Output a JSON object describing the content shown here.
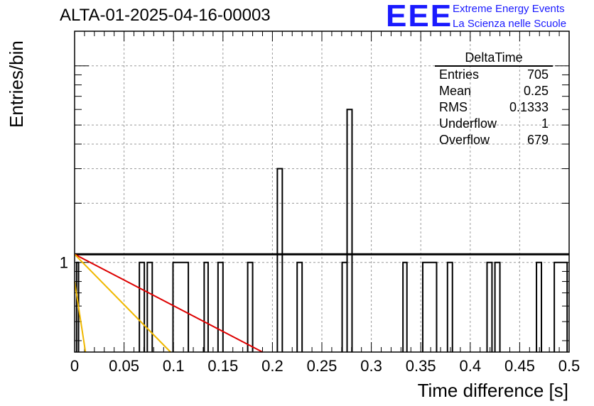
{
  "title": "ALTA-01-2025-04-16-00003",
  "logo": {
    "text": "EEE",
    "line1": "Extreme Energy Events",
    "line2": "La Scienza nelle Scuole",
    "color": "#1a1aff"
  },
  "stats": {
    "name": "DeltaTime",
    "rows": [
      {
        "label": "Entries",
        "value": "705"
      },
      {
        "label": "Mean",
        "value": "0.25"
      },
      {
        "label": "RMS",
        "value": "0.1333"
      },
      {
        "label": "Underflow",
        "value": "1"
      },
      {
        "label": "Overflow",
        "value": "679"
      }
    ]
  },
  "chart_data": {
    "type": "histogram",
    "xlabel": "Time difference [s]",
    "ylabel": "Entries/bin",
    "xlim": [
      0,
      0.5
    ],
    "log_y": true,
    "grid": true,
    "x_ticks": [
      "0",
      "0.05",
      "0.1",
      "0.15",
      "0.2",
      "0.25",
      "0.3",
      "0.35",
      "0.4",
      "0.45",
      "0.5"
    ],
    "y_ticks": [
      "1"
    ],
    "bins": [
      {
        "x0": 0.002,
        "x1": 0.004,
        "count": 1
      },
      {
        "x0": 0.0655,
        "x1": 0.0705,
        "count": 1
      },
      {
        "x0": 0.0735,
        "x1": 0.0785,
        "count": 1
      },
      {
        "x0": 0.0995,
        "x1": 0.115,
        "count": 1
      },
      {
        "x0": 0.131,
        "x1": 0.135,
        "count": 1
      },
      {
        "x0": 0.145,
        "x1": 0.15,
        "count": 1
      },
      {
        "x0": 0.175,
        "x1": 0.18,
        "count": 1
      },
      {
        "x0": 0.205,
        "x1": 0.21,
        "count": 3
      },
      {
        "x0": 0.225,
        "x1": 0.23,
        "count": 1
      },
      {
        "x0": 0.2705,
        "x1": 0.2755,
        "count": 1
      },
      {
        "x0": 0.2755,
        "x1": 0.2805,
        "count": 6
      },
      {
        "x0": 0.332,
        "x1": 0.336,
        "count": 1
      },
      {
        "x0": 0.352,
        "x1": 0.366,
        "count": 1
      },
      {
        "x0": 0.377,
        "x1": 0.382,
        "count": 1
      },
      {
        "x0": 0.417,
        "x1": 0.422,
        "count": 1
      },
      {
        "x0": 0.425,
        "x1": 0.43,
        "count": 1
      },
      {
        "x0": 0.467,
        "x1": 0.472,
        "count": 1
      },
      {
        "x0": 0.485,
        "x1": 0.498,
        "count": 1
      }
    ],
    "overlay": [
      {
        "name": "",
        "color": "#000000",
        "x0": 0,
        "y0": 1.1,
        "x1": 0.5,
        "y1": 1.1
      },
      {
        "name": "",
        "color": "#dd0000",
        "x0": 0,
        "y0": 1.1,
        "x1": 0.19,
        "y1": 0.35
      },
      {
        "name": "",
        "color": "#f0b800",
        "x0": 0,
        "y0": 1.1,
        "x1": 0.097,
        "y1": 0.35
      },
      {
        "name": "",
        "color": "#f0b800",
        "x0": 0,
        "y0": 0.8,
        "x1": 0.011,
        "y1": 0.35
      }
    ]
  }
}
